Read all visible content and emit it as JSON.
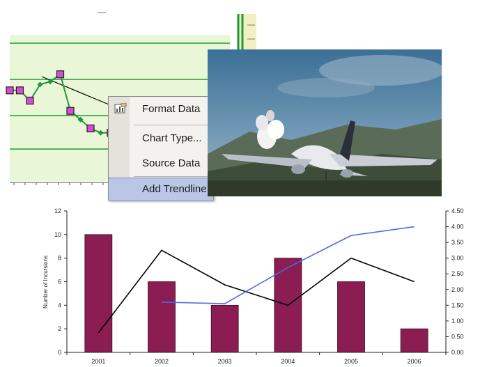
{
  "context_menu": {
    "items": [
      {
        "label": "Format Data",
        "icon": "format-data-icon"
      },
      {
        "label": "Chart Type..."
      },
      {
        "label": "Source Data"
      },
      {
        "label": "Add Trendline",
        "selected": true
      }
    ],
    "colors": {
      "background": "#f3f2ee",
      "selection": "#b9c6e6"
    }
  },
  "top_chart": {
    "colors": {
      "plot": "#eaf7d6",
      "grid": "#1e9a3a",
      "marker_fill": "#d04fd0",
      "marker_edge": "#2a1a2a",
      "line": "#1e9a3a",
      "trend": "#000000"
    },
    "points": [
      0.62,
      0.62,
      0.55,
      0.66,
      0.68,
      0.73,
      0.48,
      0.42,
      0.36,
      0.33,
      0.33,
      0.3
    ]
  },
  "photo": {
    "subject": "airplane-taking-off"
  },
  "chart_data": {
    "type": "bar",
    "categories": [
      "2001",
      "2002",
      "2003",
      "2004",
      "2005",
      "2006"
    ],
    "series": [
      {
        "type": "bar",
        "axis": "left",
        "color": "#8b1d52",
        "values": [
          10,
          6,
          4,
          8,
          6,
          2
        ]
      },
      {
        "type": "line",
        "axis": "right",
        "color": "#000000",
        "values": [
          0.62,
          3.25,
          2.15,
          1.5,
          3.0,
          2.25
        ]
      },
      {
        "type": "line",
        "axis": "right",
        "color": "#4a67e8",
        "values": [
          null,
          1.6,
          1.55,
          2.7,
          3.72,
          4.0
        ]
      }
    ],
    "ylabel": "Number of Incursions",
    "y2label": "",
    "ylim": [
      0,
      12
    ],
    "yticks": [
      "0",
      "2",
      "4",
      "6",
      "8",
      "10",
      "12"
    ],
    "y2lim": [
      0,
      4.5
    ],
    "y2ticks": [
      "0.00",
      "0.50",
      "1.00",
      "1.50",
      "2.00",
      "2.50",
      "3.00",
      "3.50",
      "4.00",
      "4.50"
    ],
    "grid": false
  }
}
